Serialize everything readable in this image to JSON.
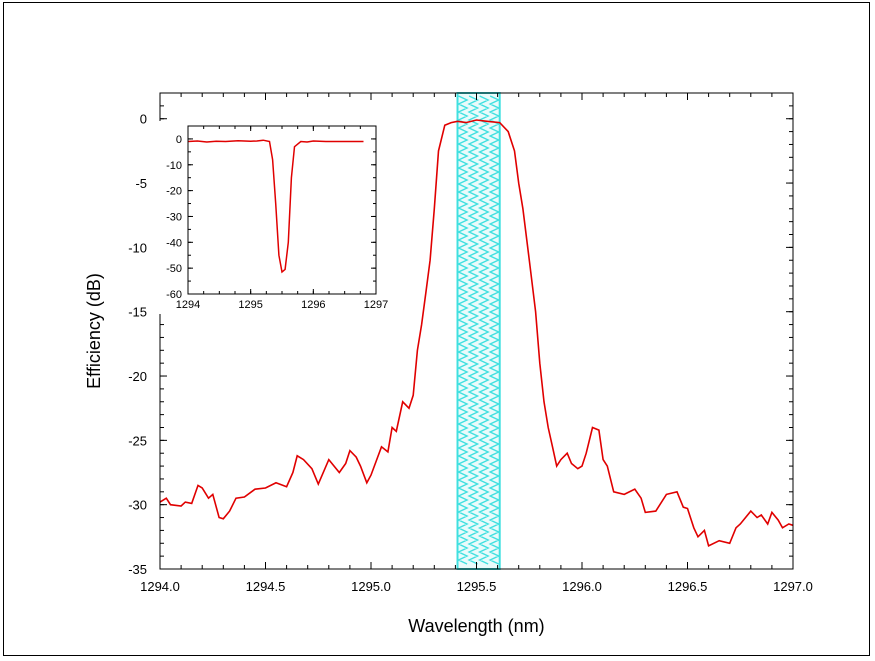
{
  "chart_data": [
    {
      "type": "line",
      "title": "",
      "xlabel": "Wavelength (nm)",
      "ylabel": "Efficiency (dB)",
      "xlim": [
        1294.0,
        1297.0
      ],
      "ylim": [
        -35,
        2
      ],
      "x_ticks": [
        1294.0,
        1294.5,
        1295.0,
        1295.5,
        1296.0,
        1296.5,
        1297.0
      ],
      "x_tick_labels": [
        "1294.0",
        "1294.5",
        "1295.0",
        "1295.5",
        "1296.0",
        "1296.5",
        "1297.0"
      ],
      "y_ticks": [
        0,
        -5,
        -10,
        -15,
        -20,
        -25,
        -30,
        -35
      ],
      "y_tick_labels": [
        "0",
        "-5",
        "-10",
        "-15",
        "-20",
        "-25",
        "-30",
        "-35"
      ],
      "line_color": "#e00000",
      "highlight_band": {
        "x_range": [
          1295.41,
          1295.61
        ],
        "color": "#40e0e0"
      },
      "series": [
        {
          "x": [
            1294.0,
            1294.03,
            1294.05,
            1294.1,
            1294.12,
            1294.15,
            1294.18,
            1294.2,
            1294.23,
            1294.25,
            1294.28,
            1294.3,
            1294.33,
            1294.36,
            1294.4,
            1294.45,
            1294.5,
            1294.55,
            1294.6,
            1294.63,
            1294.65,
            1294.68,
            1294.72,
            1294.75,
            1294.8,
            1294.85,
            1294.88,
            1294.9,
            1294.93,
            1294.95,
            1294.98,
            1295.0,
            1295.05,
            1295.08,
            1295.1,
            1295.12,
            1295.15,
            1295.18,
            1295.2,
            1295.22,
            1295.24,
            1295.26,
            1295.28,
            1295.3,
            1295.32,
            1295.35,
            1295.38,
            1295.41,
            1295.45,
            1295.5,
            1295.55,
            1295.61,
            1295.65,
            1295.68,
            1295.7,
            1295.72,
            1295.75,
            1295.78,
            1295.8,
            1295.82,
            1295.84,
            1295.86,
            1295.88,
            1295.9,
            1295.93,
            1295.95,
            1295.98,
            1296.0,
            1296.02,
            1296.05,
            1296.08,
            1296.1,
            1296.12,
            1296.15,
            1296.2,
            1296.25,
            1296.28,
            1296.3,
            1296.35,
            1296.4,
            1296.45,
            1296.48,
            1296.5,
            1296.53,
            1296.55,
            1296.58,
            1296.6,
            1296.65,
            1296.7,
            1296.73,
            1296.75,
            1296.8,
            1296.83,
            1296.85,
            1296.88,
            1296.9,
            1296.93,
            1296.95,
            1296.98,
            1297.0
          ],
          "y": [
            -29.8,
            -29.5,
            -30.0,
            -30.1,
            -29.8,
            -29.9,
            -28.5,
            -28.7,
            -29.5,
            -29.2,
            -31.0,
            -31.1,
            -30.5,
            -29.5,
            -29.4,
            -28.8,
            -28.7,
            -28.3,
            -28.6,
            -27.5,
            -26.2,
            -26.5,
            -27.2,
            -28.4,
            -26.5,
            -27.5,
            -26.8,
            -25.8,
            -26.3,
            -27.0,
            -28.3,
            -27.7,
            -25.5,
            -25.9,
            -24.0,
            -24.3,
            -22.0,
            -22.5,
            -21.5,
            -18.0,
            -16.0,
            -13.5,
            -11.0,
            -7.0,
            -2.5,
            -0.5,
            -0.3,
            -0.2,
            -0.3,
            -0.1,
            -0.2,
            -0.3,
            -1.0,
            -2.5,
            -5.0,
            -7.0,
            -11.0,
            -15.0,
            -19.0,
            -22.0,
            -24.0,
            -25.5,
            -27.0,
            -26.5,
            -26.0,
            -26.8,
            -27.2,
            -27.0,
            -26.0,
            -24.0,
            -24.2,
            -26.5,
            -27.0,
            -29.0,
            -29.2,
            -28.8,
            -29.5,
            -30.6,
            -30.5,
            -29.2,
            -29.0,
            -30.2,
            -30.3,
            -31.8,
            -32.5,
            -32.0,
            -33.2,
            -32.8,
            -33.0,
            -31.8,
            -31.5,
            -30.5,
            -31.0,
            -30.8,
            -31.5,
            -30.6,
            -31.2,
            -31.8,
            -31.5,
            -31.6
          ]
        }
      ]
    },
    {
      "type": "line",
      "title": "",
      "xlim": [
        1294,
        1297
      ],
      "ylim": [
        -60,
        5
      ],
      "x_ticks": [
        1294,
        1295,
        1296,
        1297
      ],
      "x_tick_labels": [
        "1294",
        "1295",
        "1296",
        "1297"
      ],
      "y_ticks": [
        0,
        -10,
        -20,
        -30,
        -40,
        -50,
        -60
      ],
      "y_tick_labels": [
        "0",
        "-10",
        "-20",
        "-30",
        "-40",
        "-50",
        "-60"
      ],
      "line_color": "#e00000",
      "series": [
        {
          "x": [
            1294.0,
            1294.15,
            1294.3,
            1294.45,
            1294.6,
            1294.8,
            1295.0,
            1295.1,
            1295.2,
            1295.3,
            1295.35,
            1295.4,
            1295.45,
            1295.5,
            1295.55,
            1295.6,
            1295.65,
            1295.7,
            1295.8,
            1295.9,
            1296.0,
            1296.2,
            1296.5,
            1296.8
          ],
          "y": [
            -1.0,
            -0.8,
            -1.2,
            -0.9,
            -1.0,
            -0.7,
            -0.9,
            -0.8,
            -0.5,
            -1.0,
            -8.0,
            -25.0,
            -45.0,
            -51.5,
            -50.5,
            -40.0,
            -15.0,
            -3.0,
            -1.0,
            -1.2,
            -0.8,
            -1.0,
            -1.0,
            -1.0
          ]
        }
      ]
    }
  ]
}
